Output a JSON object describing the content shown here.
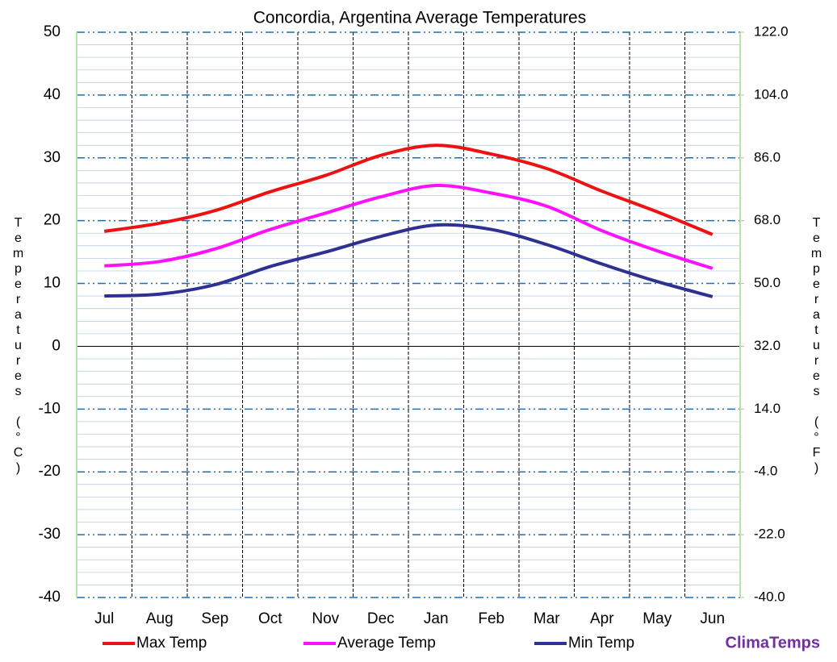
{
  "chart_data": {
    "type": "line",
    "title": "Concordia, Argentina Average Temperatures",
    "ylabel": "Temperatures (°C)",
    "y2label": "Temperatures (°F)",
    "categories": [
      "Jul",
      "Aug",
      "Sep",
      "Oct",
      "Nov",
      "Dec",
      "Jan",
      "Feb",
      "Mar",
      "Apr",
      "May",
      "Jun"
    ],
    "series": [
      {
        "name": "Max Temp",
        "color": "#ee1111",
        "values": [
          18.3,
          19.6,
          21.6,
          24.6,
          27.2,
          30.4,
          32.0,
          30.6,
          28.3,
          24.7,
          21.4,
          17.8
        ]
      },
      {
        "name": "Average Temp",
        "color": "#ff11ff",
        "values": [
          12.8,
          13.5,
          15.5,
          18.6,
          21.2,
          23.8,
          25.6,
          24.4,
          22.3,
          18.4,
          15.2,
          12.4
        ]
      },
      {
        "name": "Min Temp",
        "color": "#2e3192",
        "values": [
          8.0,
          8.3,
          9.8,
          12.7,
          15.0,
          17.5,
          19.3,
          18.6,
          16.2,
          13.1,
          10.3,
          7.9
        ]
      }
    ],
    "ylim": [
      -40,
      50
    ],
    "yticks": [
      50,
      40,
      30,
      20,
      10,
      0,
      -10,
      -20,
      -30,
      -40
    ],
    "minor_yticks": [
      48,
      46,
      44,
      42,
      38,
      36,
      34,
      32,
      28,
      26,
      24,
      22,
      18,
      16,
      14,
      12,
      8,
      6,
      4,
      2,
      -2,
      -4,
      -6,
      -8,
      -12,
      -14,
      -16,
      -18,
      -22,
      -24,
      -26,
      -28,
      -32,
      -34,
      -36,
      -38
    ],
    "y2lim": [
      -40,
      122
    ],
    "y2ticks": [
      {
        "value": 122,
        "label": "122.0"
      },
      {
        "value": 104,
        "label": "104.0"
      },
      {
        "value": 86,
        "label": "86.0"
      },
      {
        "value": 68,
        "label": "68.0"
      },
      {
        "value": 50,
        "label": "50.0"
      },
      {
        "value": 32,
        "label": "32.0"
      },
      {
        "value": 14,
        "label": "14.0"
      },
      {
        "value": -4,
        "label": "-4.0"
      },
      {
        "value": -22,
        "label": "-22.0"
      },
      {
        "value": -40,
        "label": "-40.0"
      }
    ],
    "grid": true,
    "legend": "bottom",
    "watermark": "ClimaTemps"
  }
}
